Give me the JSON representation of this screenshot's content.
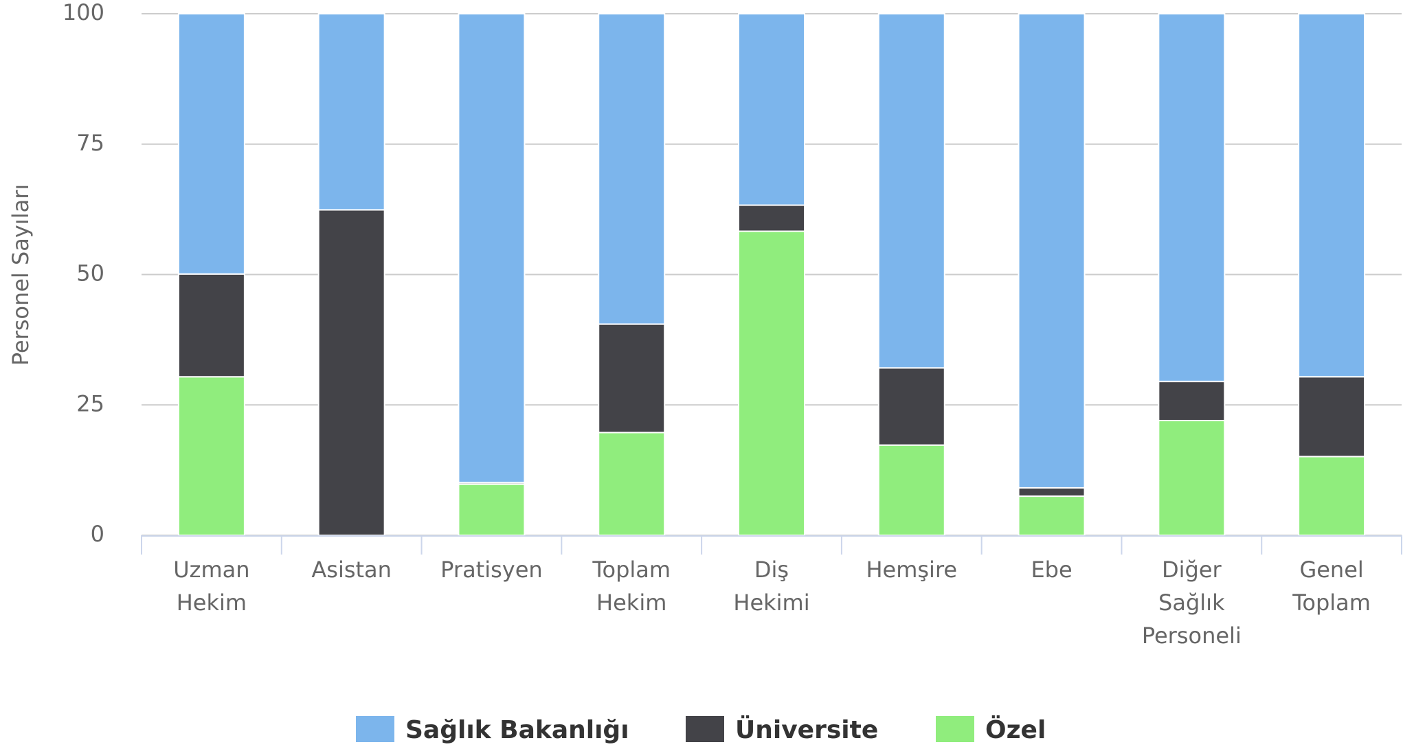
{
  "chart_data": {
    "type": "stacked_bar",
    "y_label": "Personel Sayıları",
    "categories": [
      "Uzman Hekim",
      "Asistan",
      "Pratisyen",
      "Toplam Hekim",
      "Diş Hekimi",
      "Hemşire",
      "Ebe",
      "Diğer Sağlık Personeli",
      "Genel Toplam"
    ],
    "series": [
      {
        "name": "Sağlık Bakanlığı",
        "color": "#7cb5ec",
        "values": [
          49.9,
          37.6,
          89.9,
          59.5,
          36.7,
          67.9,
          90.9,
          70.5,
          69.6
        ]
      },
      {
        "name": "Üniversite",
        "color": "#434348",
        "values": [
          19.7,
          62.4,
          0.3,
          20.8,
          5.0,
          14.8,
          1.6,
          7.5,
          15.3
        ]
      },
      {
        "name": "Özel",
        "color": "#90ed7d",
        "values": [
          30.4,
          0,
          9.8,
          19.7,
          58.3,
          17.3,
          7.5,
          22.0,
          15.1
        ]
      }
    ],
    "ylim": [
      0,
      100
    ],
    "yticks": [
      0,
      25,
      50,
      75,
      100
    ],
    "grid": true
  }
}
